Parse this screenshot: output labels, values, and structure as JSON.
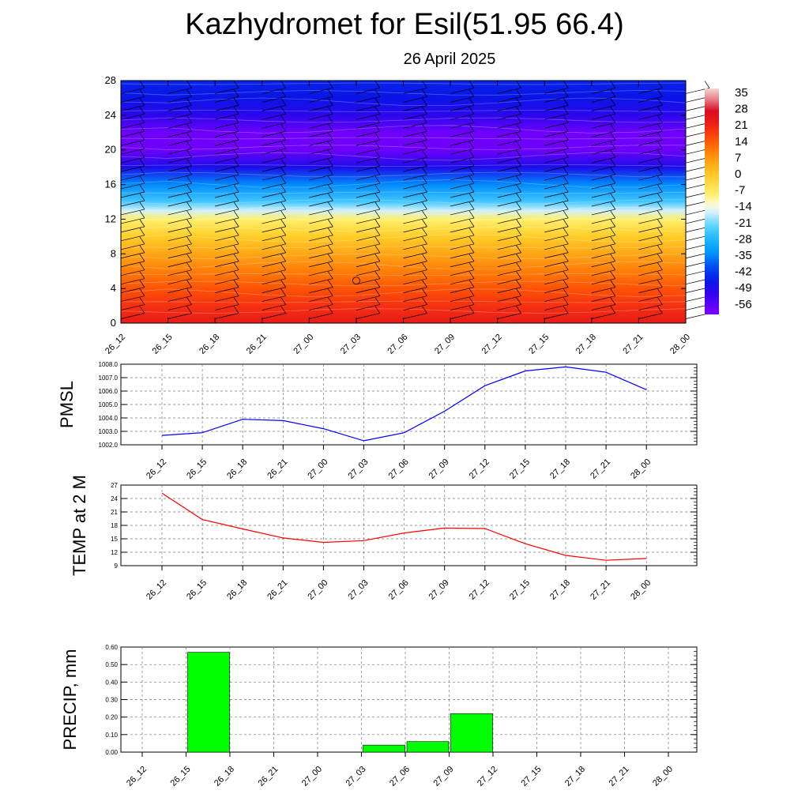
{
  "title": "Kazhydromet for Esil(51.95 66.4)",
  "subtitle": "26 April 2025",
  "colors": {
    "pmsl_line": "#0000ff",
    "temp_line": "#ff0000",
    "precip_bar": "#00ff00"
  },
  "chart_data": [
    {
      "type": "heatmap",
      "name": "vertical-cross-section",
      "x_categories": [
        "26_12",
        "26_15",
        "26_18",
        "26_21",
        "27_00",
        "27_03",
        "27_06",
        "27_09",
        "27_12",
        "27_15",
        "27_18",
        "27_21",
        "28_00"
      ],
      "y_ticks": [
        "0",
        "4",
        "8",
        "12",
        "16",
        "20",
        "24",
        "28"
      ],
      "ylim": [
        0,
        28
      ],
      "colorbar_labels": [
        "35",
        "28",
        "21",
        "14",
        "7",
        "0",
        "-7",
        "-14",
        "-21",
        "-28",
        "-35",
        "-42",
        "-49",
        "-56"
      ],
      "colorbar_range": [
        -60,
        38
      ],
      "temperature_profile": [
        {
          "level": 0,
          "value": 24
        },
        {
          "level": 2,
          "value": 20
        },
        {
          "level": 4,
          "value": 16
        },
        {
          "level": 6,
          "value": 11
        },
        {
          "level": 8,
          "value": 6
        },
        {
          "level": 10,
          "value": 0
        },
        {
          "level": 12,
          "value": -8
        },
        {
          "level": 13,
          "value": -16
        },
        {
          "level": 14,
          "value": -24
        },
        {
          "level": 16,
          "value": -34
        },
        {
          "level": 18,
          "value": -48
        },
        {
          "level": 20,
          "value": -58
        },
        {
          "level": 22,
          "value": -58
        },
        {
          "level": 24,
          "value": -50
        },
        {
          "level": 26,
          "value": -46
        },
        {
          "level": 28,
          "value": -44
        }
      ]
    },
    {
      "type": "line",
      "name": "pmsl",
      "ylabel": "PMSL",
      "x_categories": [
        "26_12",
        "26_15",
        "26_18",
        "26_21",
        "27_00",
        "27_03",
        "27_06",
        "27_09",
        "27_12",
        "27_15",
        "27_18",
        "27_21",
        "28_00"
      ],
      "values": [
        1002.7,
        1002.9,
        1003.9,
        1003.8,
        1003.2,
        1002.3,
        1002.9,
        1004.5,
        1006.4,
        1007.5,
        1007.8,
        1007.4,
        1006.1
      ],
      "ylim": [
        1002.0,
        1008.0
      ],
      "y_ticks": [
        "1002.0",
        "1003.0",
        "1004.0",
        "1005.0",
        "1006.0",
        "1007.0",
        "1008.0"
      ]
    },
    {
      "type": "line",
      "name": "temp-2m",
      "ylabel": "TEMP at 2 M",
      "x_categories": [
        "26_12",
        "26_15",
        "26_18",
        "26_21",
        "27_00",
        "27_03",
        "27_06",
        "27_09",
        "27_12",
        "27_15",
        "27_18",
        "27_21",
        "28_00"
      ],
      "values": [
        25.2,
        19.3,
        17.2,
        15.2,
        14.2,
        14.6,
        16.3,
        17.4,
        17.3,
        13.9,
        11.3,
        10.2,
        10.6
      ],
      "ylim": [
        9,
        27
      ],
      "y_ticks": [
        "9",
        "12",
        "15",
        "18",
        "21",
        "24",
        "27"
      ]
    },
    {
      "type": "bar",
      "name": "precip",
      "ylabel": "PRECIP, mm",
      "x_categories": [
        "26_12",
        "26_15",
        "26_18",
        "26_21",
        "27_00",
        "27_03",
        "27_06",
        "27_09",
        "27_12",
        "27_15",
        "27_18",
        "27_21",
        "28_00"
      ],
      "values": [
        0,
        0.57,
        0,
        0,
        0,
        0.04,
        0.06,
        0.22,
        0,
        0,
        0,
        0,
        0
      ],
      "ylim": [
        0,
        0.6
      ],
      "y_ticks": [
        "0.00",
        "0.10",
        "0.20",
        "0.30",
        "0.40",
        "0.50",
        "0.60"
      ]
    }
  ]
}
